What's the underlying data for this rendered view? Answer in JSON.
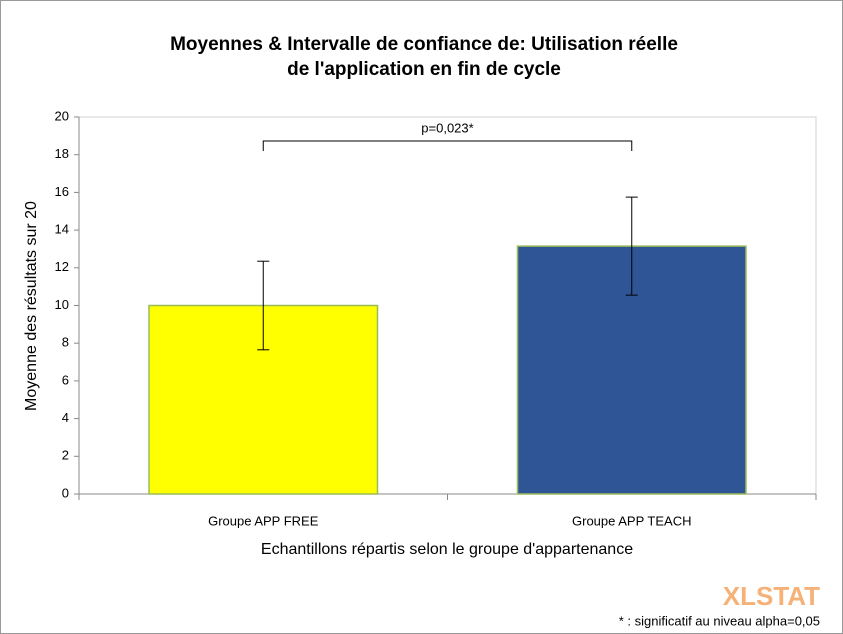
{
  "chart_data": {
    "type": "bar",
    "title": [
      "Moyennes & Intervalle de confiance de: Utilisation réelle",
      "de l'application en fin de cycle"
    ],
    "y_label": "Moyenne des résultats sur 20",
    "x_label": "Echantillons répartis selon le groupe d'appartenance",
    "categories": [
      "Groupe APP FREE",
      "Groupe APP TEACH"
    ],
    "values": [
      10.0,
      13.15
    ],
    "errors": [
      2.35,
      2.6
    ],
    "colors": [
      "#ffff00",
      "#2f5597"
    ],
    "ylim": [
      0,
      20
    ],
    "yticks": [
      0,
      2,
      4,
      6,
      8,
      10,
      12,
      14,
      16,
      18,
      20
    ],
    "grid": false,
    "annotation": "p=0,023*",
    "footnote": "* : significatif au niveau alpha=0,05",
    "watermark": "XLSTAT"
  }
}
